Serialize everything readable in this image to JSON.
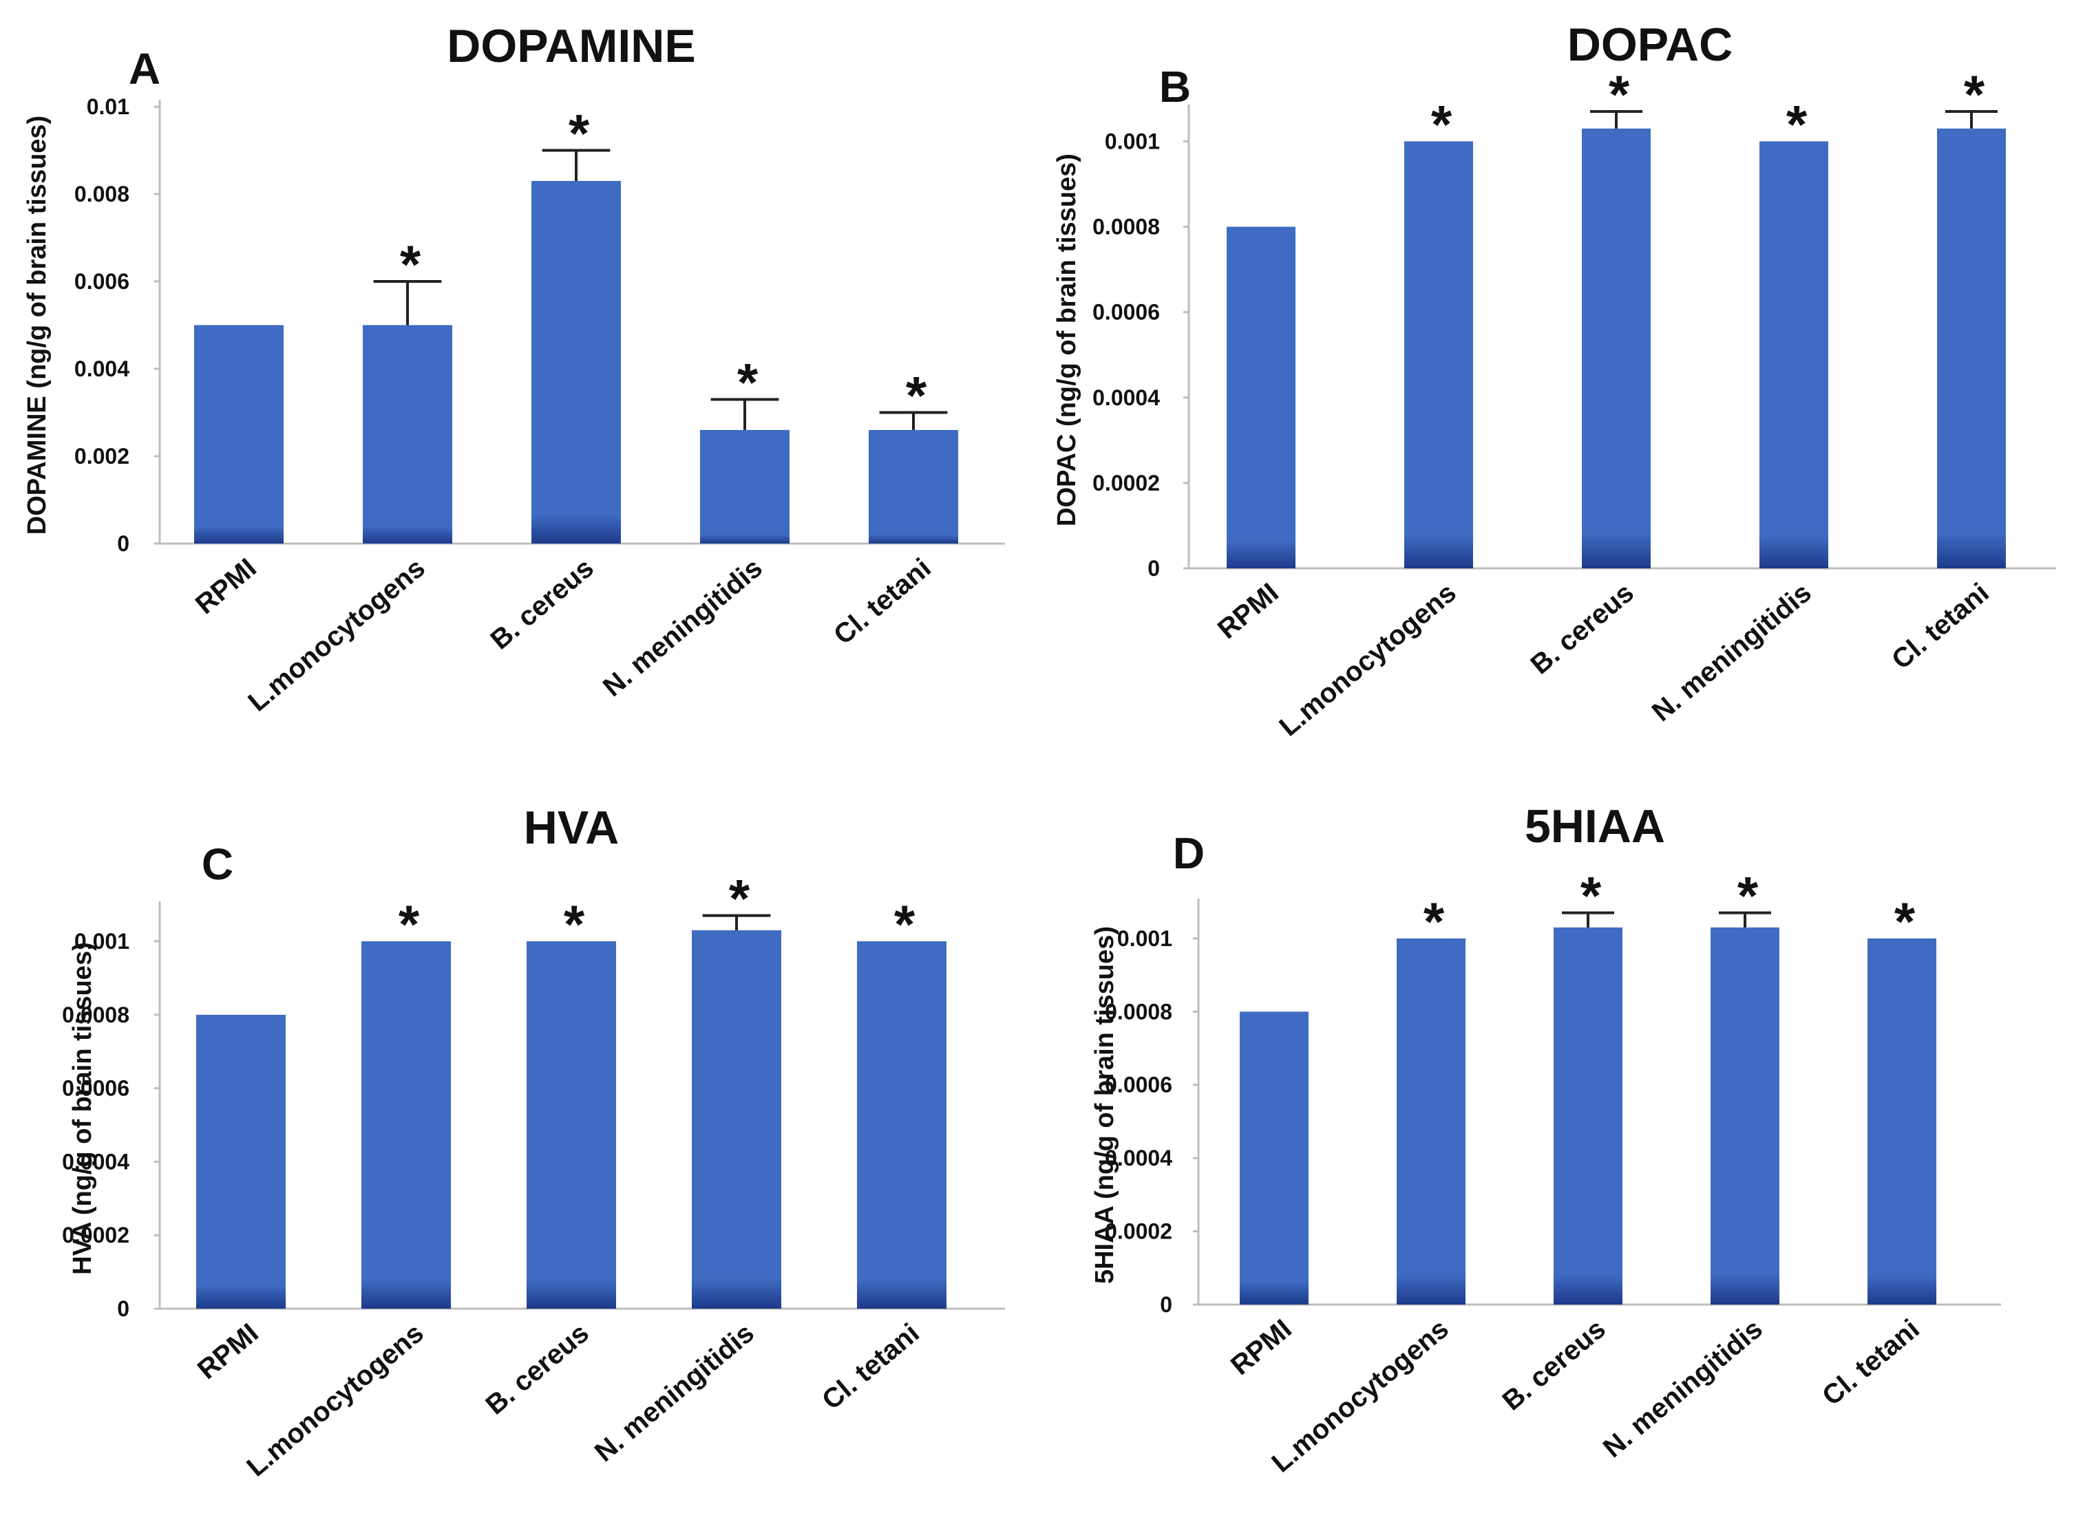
{
  "figure": {
    "panels_description": "Four bar-chart panels of brain neurotransmitter levels"
  },
  "colors": {
    "bar_top": "#3f6cc2",
    "bar_bottom": "#1d3a8a",
    "axis": "#bdbdbd",
    "error": "#222222",
    "text": "#111111"
  },
  "chart_data": [
    {
      "type": "bar",
      "letter": "A",
      "title": "DOPAMINE",
      "xlabel": "",
      "ylabel": "DOPAMINE (ng/g of brain tissues)",
      "categories": [
        "RPMI",
        "L.monocytogens",
        "B. cereus",
        "N. meningitidis",
        "Cl. tetani"
      ],
      "values": [
        0.005,
        0.005,
        0.0083,
        0.0026,
        0.0026
      ],
      "errors": [
        0,
        0.001,
        0.0007,
        0.0007,
        0.0004
      ],
      "significant": [
        "",
        "*",
        "*",
        "*",
        "*"
      ],
      "yticks": [
        0,
        0.002,
        0.004,
        0.006,
        0.008,
        0.01
      ],
      "ytick_labels": [
        "0",
        "0.002",
        "0.004",
        "0.006",
        "0.008",
        "0.01"
      ],
      "ylim": [
        0,
        0.01
      ]
    },
    {
      "type": "bar",
      "letter": "B",
      "title": "DOPAC",
      "xlabel": "",
      "ylabel": "DOPAC (ng/g of brain tissues)",
      "categories": [
        "RPMI",
        "L.monocytogens",
        "B. cereus",
        "N. meningitidis",
        "Cl. tetani"
      ],
      "values": [
        0.0008,
        0.001,
        0.00103,
        0.001,
        0.00103
      ],
      "errors": [
        0,
        0,
        4e-05,
        0,
        4e-05
      ],
      "significant": [
        "",
        "*",
        "*",
        "*",
        "*"
      ],
      "yticks": [
        0,
        0.0002,
        0.0004,
        0.0006,
        0.0008,
        0.001
      ],
      "ytick_labels": [
        "0",
        "0.0002",
        "0.0004",
        "0.0006",
        "0.0008",
        "0.001"
      ],
      "ylim": [
        0,
        0.00107
      ]
    },
    {
      "type": "bar",
      "letter": "C",
      "title": "HVA",
      "xlabel": "",
      "ylabel": "HVA (ng/g of brain tissues)",
      "categories": [
        "RPMI",
        "L.monocytogens",
        "B. cereus",
        "N. meningitidis",
        "Cl. tetani"
      ],
      "values": [
        0.0008,
        0.001,
        0.001,
        0.00103,
        0.001
      ],
      "errors": [
        0,
        0,
        0,
        4e-05,
        0
      ],
      "significant": [
        "",
        "*",
        "*",
        "*",
        "*"
      ],
      "yticks": [
        0,
        0.0002,
        0.0004,
        0.0006,
        0.0008,
        0.001
      ],
      "ytick_labels": [
        "0",
        "0.0002",
        "0.0004",
        "0.0006",
        "0.0008",
        "0.001"
      ],
      "ylim": [
        0,
        0.00109
      ]
    },
    {
      "type": "bar",
      "letter": "D",
      "title": "5HIAA",
      "xlabel": "",
      "ylabel": "5HIAA (ng/g of brain tissues)",
      "categories": [
        "RPMI",
        "L.monocytogens",
        "B. cereus",
        "N. meningitidis",
        "Cl. tetani"
      ],
      "values": [
        0.0008,
        0.001,
        0.00103,
        0.00103,
        0.001
      ],
      "errors": [
        0,
        0,
        4e-05,
        4e-05,
        0
      ],
      "significant": [
        "",
        "*",
        "*",
        "*",
        "*"
      ],
      "yticks": [
        0,
        0.0002,
        0.0004,
        0.0006,
        0.0008,
        0.001
      ],
      "ytick_labels": [
        "0",
        "0.0002",
        "0.0004",
        "0.0006",
        "0.0008",
        "0.001"
      ],
      "ylim": [
        0,
        0.00109
      ]
    }
  ]
}
